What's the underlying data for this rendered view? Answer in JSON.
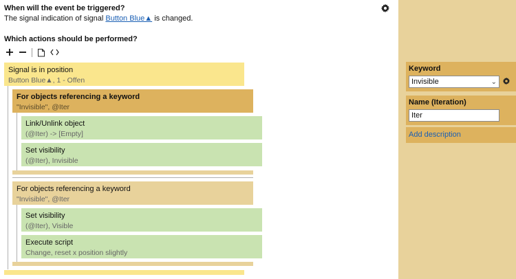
{
  "trigger": {
    "heading": "When will the event be triggered?",
    "line_prefix": "The signal indication of signal ",
    "signal_link": "Button Blue▲",
    "line_suffix": " is changed."
  },
  "actions": {
    "heading": "Which actions should be performed?",
    "toolbar": {
      "add_icon": "plus-icon",
      "remove_icon": "minus-icon",
      "copy_icon": "copy-icon",
      "code_icon": "code-icon"
    }
  },
  "tree": {
    "signal": {
      "title": "Signal is in position",
      "subtitle": "Button Blue▲, 1 - Offen"
    },
    "loop1": {
      "title": "For objects referencing a keyword",
      "subtitle": "\"Invisible\", @Iter",
      "children": [
        {
          "title": "Link/Unlink object",
          "subtitle": "(@Iter) -> [Empty]"
        },
        {
          "title": "Set visibility",
          "subtitle": "(@Iter), Invisible"
        }
      ]
    },
    "loop2": {
      "title": "For objects referencing a keyword",
      "subtitle": "\"Invisible\", @Iter",
      "children": [
        {
          "title": "Set visibility",
          "subtitle": "(@Iter), Visible"
        },
        {
          "title": "Execute script",
          "subtitle": "Change, reset x position slightly"
        }
      ]
    }
  },
  "panel": {
    "keyword_label": "Keyword",
    "keyword_value": "Invisible",
    "name_label": "Name (Iteration)",
    "name_value": "Iter",
    "add_description": "Add description"
  },
  "colors": {
    "signal": "#fae68d",
    "loop_selected": "#ddb25e",
    "loop": "#e8d29b",
    "action": "#c9e3b1",
    "panel": "#e8d29b",
    "link": "#1a5fb4"
  }
}
